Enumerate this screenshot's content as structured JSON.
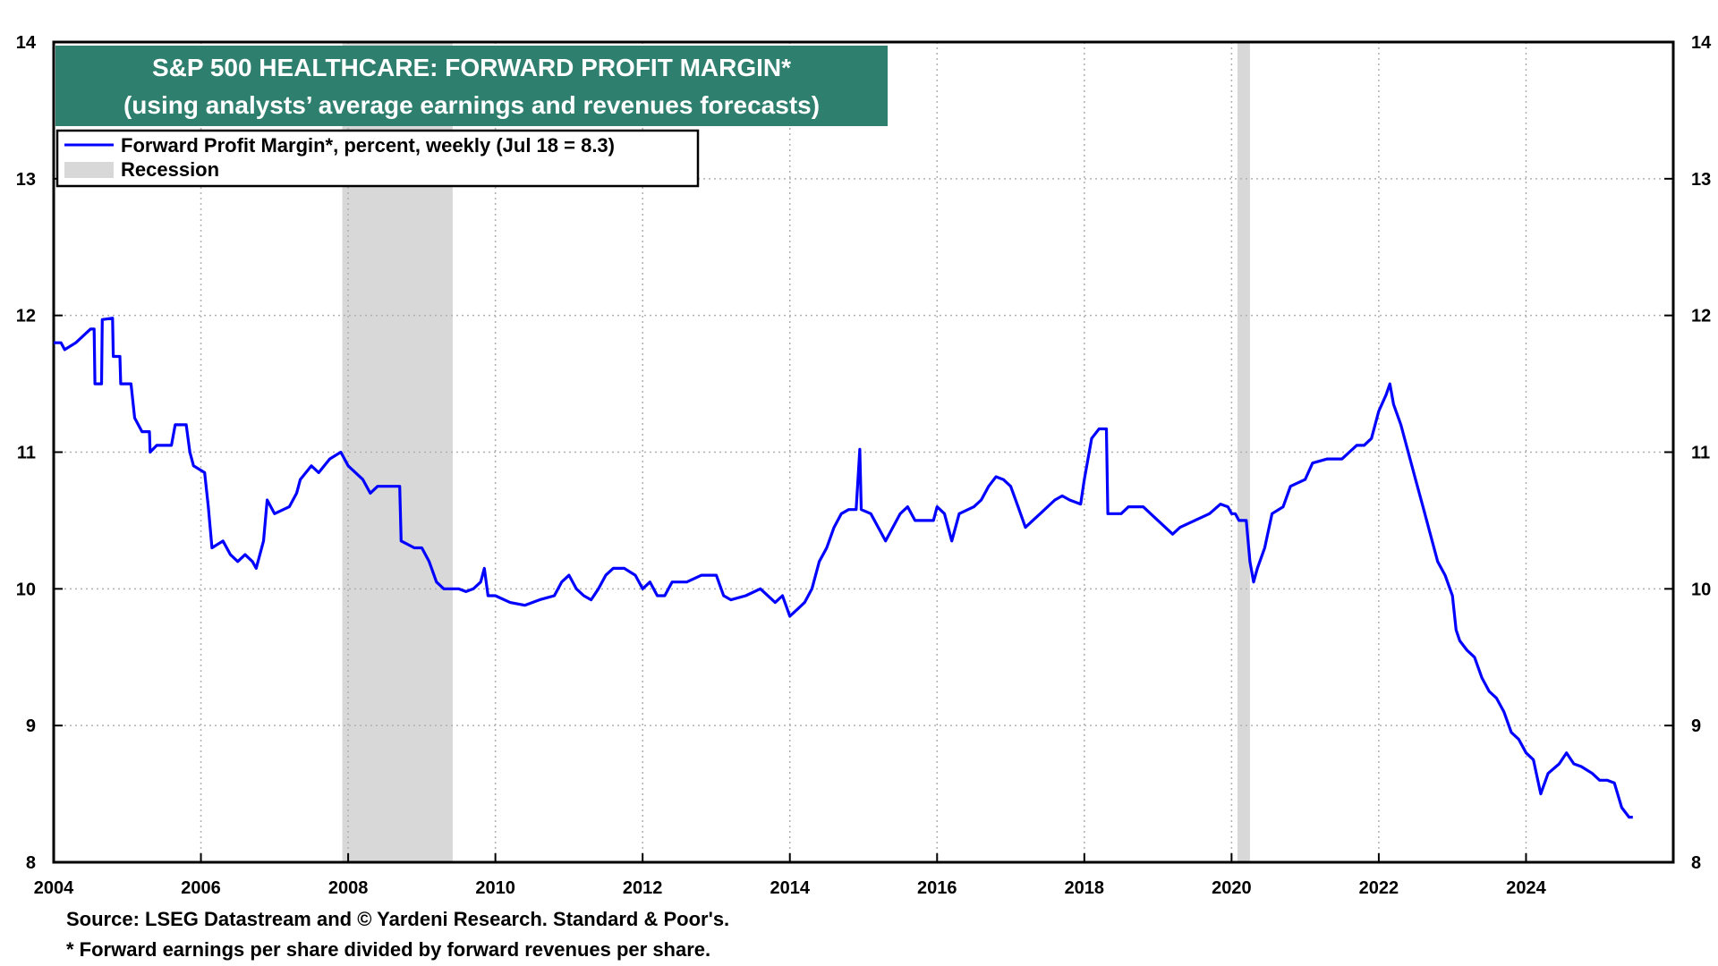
{
  "chart_data": {
    "type": "line",
    "title": "S&P 500 HEALTHCARE: FORWARD PROFIT MARGIN*",
    "subtitle": "(using analysts’ average earnings and revenues forecasts)",
    "xlabel": "",
    "ylabel": "",
    "xlim": [
      2004,
      2026
    ],
    "ylim": [
      8,
      14
    ],
    "x_ticks": [
      "2004",
      "2006",
      "2008",
      "2010",
      "2012",
      "2014",
      "2016",
      "2018",
      "2020",
      "2022",
      "2024"
    ],
    "y_ticks": [
      "8",
      "9",
      "10",
      "11",
      "12",
      "13",
      "14"
    ],
    "grid": true,
    "legend_position": "top-left",
    "legend": [
      {
        "label": "Forward Profit Margin*, percent, weekly (Jul 18 = 8.3)",
        "type": "line"
      },
      {
        "label": "Recession",
        "type": "area"
      }
    ],
    "recessions": [
      {
        "start": 2007.92,
        "end": 2009.42
      },
      {
        "start": 2020.08,
        "end": 2020.25
      }
    ],
    "series": [
      {
        "name": "Forward Profit Margin*, percent, weekly (Jul 18 = 8.3)",
        "color": "#0000ff",
        "points": [
          [
            2004.0,
            11.8
          ],
          [
            2004.1,
            11.8
          ],
          [
            2004.15,
            11.75
          ],
          [
            2004.3,
            11.8
          ],
          [
            2004.4,
            11.85
          ],
          [
            2004.5,
            11.9
          ],
          [
            2004.55,
            11.9
          ],
          [
            2004.56,
            11.5
          ],
          [
            2004.65,
            11.5
          ],
          [
            2004.66,
            11.97
          ],
          [
            2004.8,
            11.98
          ],
          [
            2004.81,
            11.7
          ],
          [
            2004.9,
            11.7
          ],
          [
            2004.91,
            11.5
          ],
          [
            2005.05,
            11.5
          ],
          [
            2005.1,
            11.25
          ],
          [
            2005.2,
            11.15
          ],
          [
            2005.3,
            11.15
          ],
          [
            2005.31,
            11.0
          ],
          [
            2005.4,
            11.05
          ],
          [
            2005.6,
            11.05
          ],
          [
            2005.65,
            11.2
          ],
          [
            2005.8,
            11.2
          ],
          [
            2005.85,
            11.0
          ],
          [
            2005.9,
            10.9
          ],
          [
            2006.05,
            10.85
          ],
          [
            2006.1,
            10.6
          ],
          [
            2006.15,
            10.3
          ],
          [
            2006.3,
            10.35
          ],
          [
            2006.4,
            10.25
          ],
          [
            2006.5,
            10.2
          ],
          [
            2006.6,
            10.25
          ],
          [
            2006.7,
            10.2
          ],
          [
            2006.75,
            10.15
          ],
          [
            2006.85,
            10.35
          ],
          [
            2006.9,
            10.65
          ],
          [
            2007.0,
            10.55
          ],
          [
            2007.2,
            10.6
          ],
          [
            2007.3,
            10.7
          ],
          [
            2007.35,
            10.8
          ],
          [
            2007.5,
            10.9
          ],
          [
            2007.6,
            10.85
          ],
          [
            2007.75,
            10.95
          ],
          [
            2007.9,
            11.0
          ],
          [
            2008.0,
            10.9
          ],
          [
            2008.1,
            10.85
          ],
          [
            2008.2,
            10.8
          ],
          [
            2008.3,
            10.7
          ],
          [
            2008.4,
            10.75
          ],
          [
            2008.5,
            10.75
          ],
          [
            2008.6,
            10.75
          ],
          [
            2008.7,
            10.75
          ],
          [
            2008.72,
            10.35
          ],
          [
            2008.9,
            10.3
          ],
          [
            2009.0,
            10.3
          ],
          [
            2009.1,
            10.2
          ],
          [
            2009.2,
            10.05
          ],
          [
            2009.3,
            10.0
          ],
          [
            2009.4,
            10.0
          ],
          [
            2009.5,
            10.0
          ],
          [
            2009.6,
            9.98
          ],
          [
            2009.7,
            10.0
          ],
          [
            2009.8,
            10.05
          ],
          [
            2009.85,
            10.15
          ],
          [
            2009.9,
            9.95
          ],
          [
            2010.0,
            9.95
          ],
          [
            2010.2,
            9.9
          ],
          [
            2010.4,
            9.88
          ],
          [
            2010.6,
            9.92
          ],
          [
            2010.8,
            9.95
          ],
          [
            2010.9,
            10.05
          ],
          [
            2011.0,
            10.1
          ],
          [
            2011.1,
            10.0
          ],
          [
            2011.2,
            9.95
          ],
          [
            2011.3,
            9.92
          ],
          [
            2011.4,
            10.0
          ],
          [
            2011.5,
            10.1
          ],
          [
            2011.6,
            10.15
          ],
          [
            2011.75,
            10.15
          ],
          [
            2011.9,
            10.1
          ],
          [
            2012.0,
            10.0
          ],
          [
            2012.1,
            10.05
          ],
          [
            2012.2,
            9.95
          ],
          [
            2012.3,
            9.95
          ],
          [
            2012.4,
            10.05
          ],
          [
            2012.6,
            10.05
          ],
          [
            2012.8,
            10.1
          ],
          [
            2013.0,
            10.1
          ],
          [
            2013.1,
            9.95
          ],
          [
            2013.2,
            9.92
          ],
          [
            2013.4,
            9.95
          ],
          [
            2013.6,
            10.0
          ],
          [
            2013.8,
            9.9
          ],
          [
            2013.9,
            9.95
          ],
          [
            2014.0,
            9.8
          ],
          [
            2014.1,
            9.85
          ],
          [
            2014.2,
            9.9
          ],
          [
            2014.3,
            10.0
          ],
          [
            2014.4,
            10.2
          ],
          [
            2014.5,
            10.3
          ],
          [
            2014.6,
            10.45
          ],
          [
            2014.7,
            10.55
          ],
          [
            2014.8,
            10.58
          ],
          [
            2014.9,
            10.58
          ],
          [
            2014.95,
            11.02
          ],
          [
            2014.97,
            10.58
          ],
          [
            2015.1,
            10.55
          ],
          [
            2015.2,
            10.45
          ],
          [
            2015.3,
            10.35
          ],
          [
            2015.5,
            10.55
          ],
          [
            2015.6,
            10.6
          ],
          [
            2015.7,
            10.5
          ],
          [
            2015.8,
            10.5
          ],
          [
            2015.95,
            10.5
          ],
          [
            2016.0,
            10.6
          ],
          [
            2016.1,
            10.55
          ],
          [
            2016.2,
            10.35
          ],
          [
            2016.3,
            10.55
          ],
          [
            2016.5,
            10.6
          ],
          [
            2016.6,
            10.65
          ],
          [
            2016.7,
            10.75
          ],
          [
            2016.8,
            10.82
          ],
          [
            2016.9,
            10.8
          ],
          [
            2017.0,
            10.75
          ],
          [
            2017.1,
            10.6
          ],
          [
            2017.2,
            10.45
          ],
          [
            2017.3,
            10.5
          ],
          [
            2017.4,
            10.55
          ],
          [
            2017.6,
            10.65
          ],
          [
            2017.7,
            10.68
          ],
          [
            2017.8,
            10.65
          ],
          [
            2017.95,
            10.62
          ],
          [
            2018.0,
            10.8
          ],
          [
            2018.1,
            11.1
          ],
          [
            2018.2,
            11.17
          ],
          [
            2018.3,
            11.17
          ],
          [
            2018.32,
            10.55
          ],
          [
            2018.5,
            10.55
          ],
          [
            2018.6,
            10.6
          ],
          [
            2018.7,
            10.6
          ],
          [
            2018.8,
            10.6
          ],
          [
            2018.9,
            10.55
          ],
          [
            2019.0,
            10.5
          ],
          [
            2019.1,
            10.45
          ],
          [
            2019.2,
            10.4
          ],
          [
            2019.3,
            10.45
          ],
          [
            2019.5,
            10.5
          ],
          [
            2019.7,
            10.55
          ],
          [
            2019.85,
            10.62
          ],
          [
            2019.95,
            10.6
          ],
          [
            2020.0,
            10.55
          ],
          [
            2020.05,
            10.55
          ],
          [
            2020.1,
            10.5
          ],
          [
            2020.2,
            10.5
          ],
          [
            2020.25,
            10.2
          ],
          [
            2020.3,
            10.05
          ],
          [
            2020.35,
            10.15
          ],
          [
            2020.45,
            10.3
          ],
          [
            2020.55,
            10.55
          ],
          [
            2020.7,
            10.6
          ],
          [
            2020.8,
            10.75
          ],
          [
            2021.0,
            10.8
          ],
          [
            2021.1,
            10.92
          ],
          [
            2021.3,
            10.95
          ],
          [
            2021.5,
            10.95
          ],
          [
            2021.6,
            11.0
          ],
          [
            2021.7,
            11.05
          ],
          [
            2021.8,
            11.05
          ],
          [
            2021.9,
            11.1
          ],
          [
            2022.0,
            11.3
          ],
          [
            2022.1,
            11.42
          ],
          [
            2022.15,
            11.5
          ],
          [
            2022.2,
            11.35
          ],
          [
            2022.3,
            11.2
          ],
          [
            2022.4,
            11.0
          ],
          [
            2022.5,
            10.8
          ],
          [
            2022.6,
            10.6
          ],
          [
            2022.7,
            10.4
          ],
          [
            2022.8,
            10.2
          ],
          [
            2022.9,
            10.1
          ],
          [
            2023.0,
            9.95
          ],
          [
            2023.05,
            9.7
          ],
          [
            2023.1,
            9.62
          ],
          [
            2023.2,
            9.55
          ],
          [
            2023.3,
            9.5
          ],
          [
            2023.4,
            9.35
          ],
          [
            2023.5,
            9.25
          ],
          [
            2023.6,
            9.2
          ],
          [
            2023.7,
            9.1
          ],
          [
            2023.8,
            8.95
          ],
          [
            2023.9,
            8.9
          ],
          [
            2024.0,
            8.8
          ],
          [
            2024.1,
            8.75
          ],
          [
            2024.2,
            8.5
          ],
          [
            2024.3,
            8.65
          ],
          [
            2024.45,
            8.72
          ],
          [
            2024.55,
            8.8
          ],
          [
            2024.65,
            8.72
          ],
          [
            2024.75,
            8.7
          ],
          [
            2024.9,
            8.65
          ],
          [
            2025.0,
            8.6
          ],
          [
            2025.1,
            8.6
          ],
          [
            2025.2,
            8.58
          ],
          [
            2025.3,
            8.4
          ],
          [
            2025.4,
            8.33
          ],
          [
            2025.45,
            8.33
          ]
        ]
      }
    ]
  },
  "footnotes": {
    "source": "Source: LSEG Datastream and © Yardeni Research. Standard & Poor's.",
    "note": "* Forward earnings per share divided by forward revenues per share."
  }
}
